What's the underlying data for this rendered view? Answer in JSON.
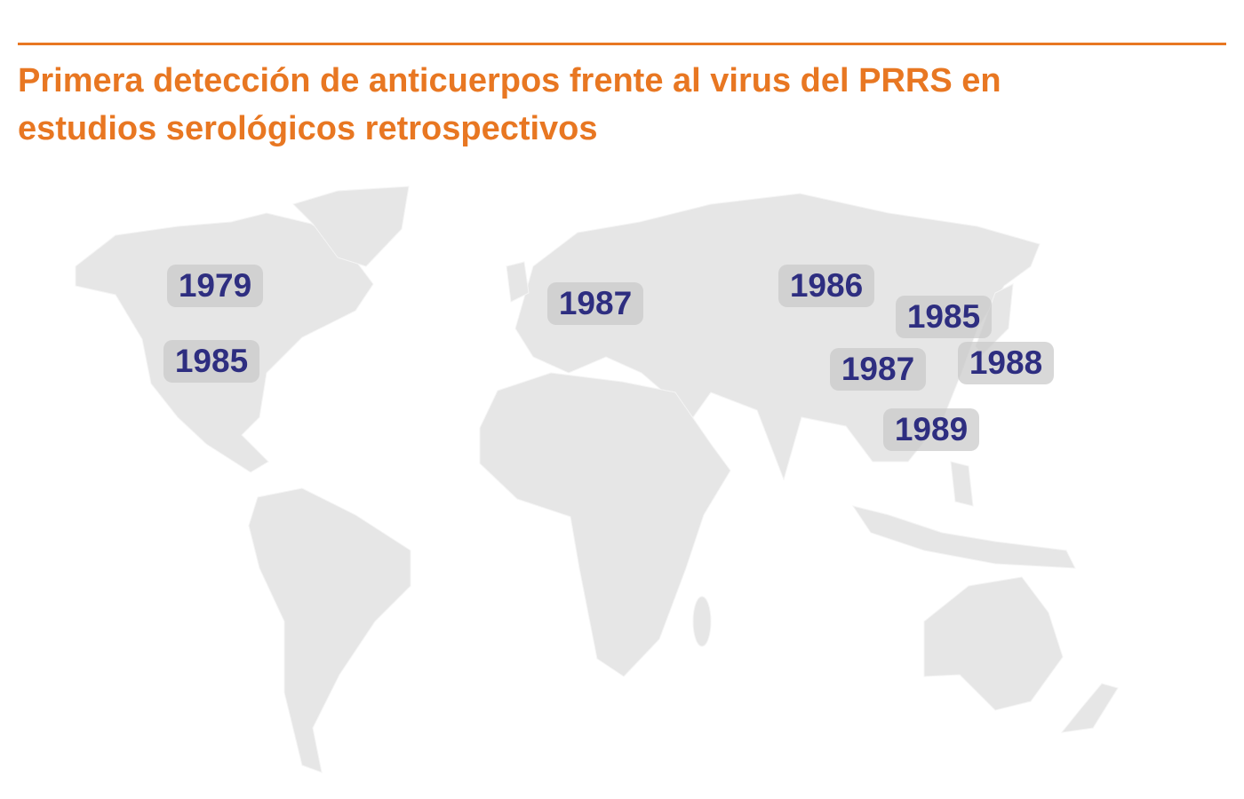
{
  "title": "Primera detección de anticuerpos frente al virus del PRRS en estudios serológicos retrospectivos",
  "labels": [
    "1979",
    "1985",
    "1987",
    "1986",
    "1985",
    "1987",
    "1988",
    "1989"
  ]
}
